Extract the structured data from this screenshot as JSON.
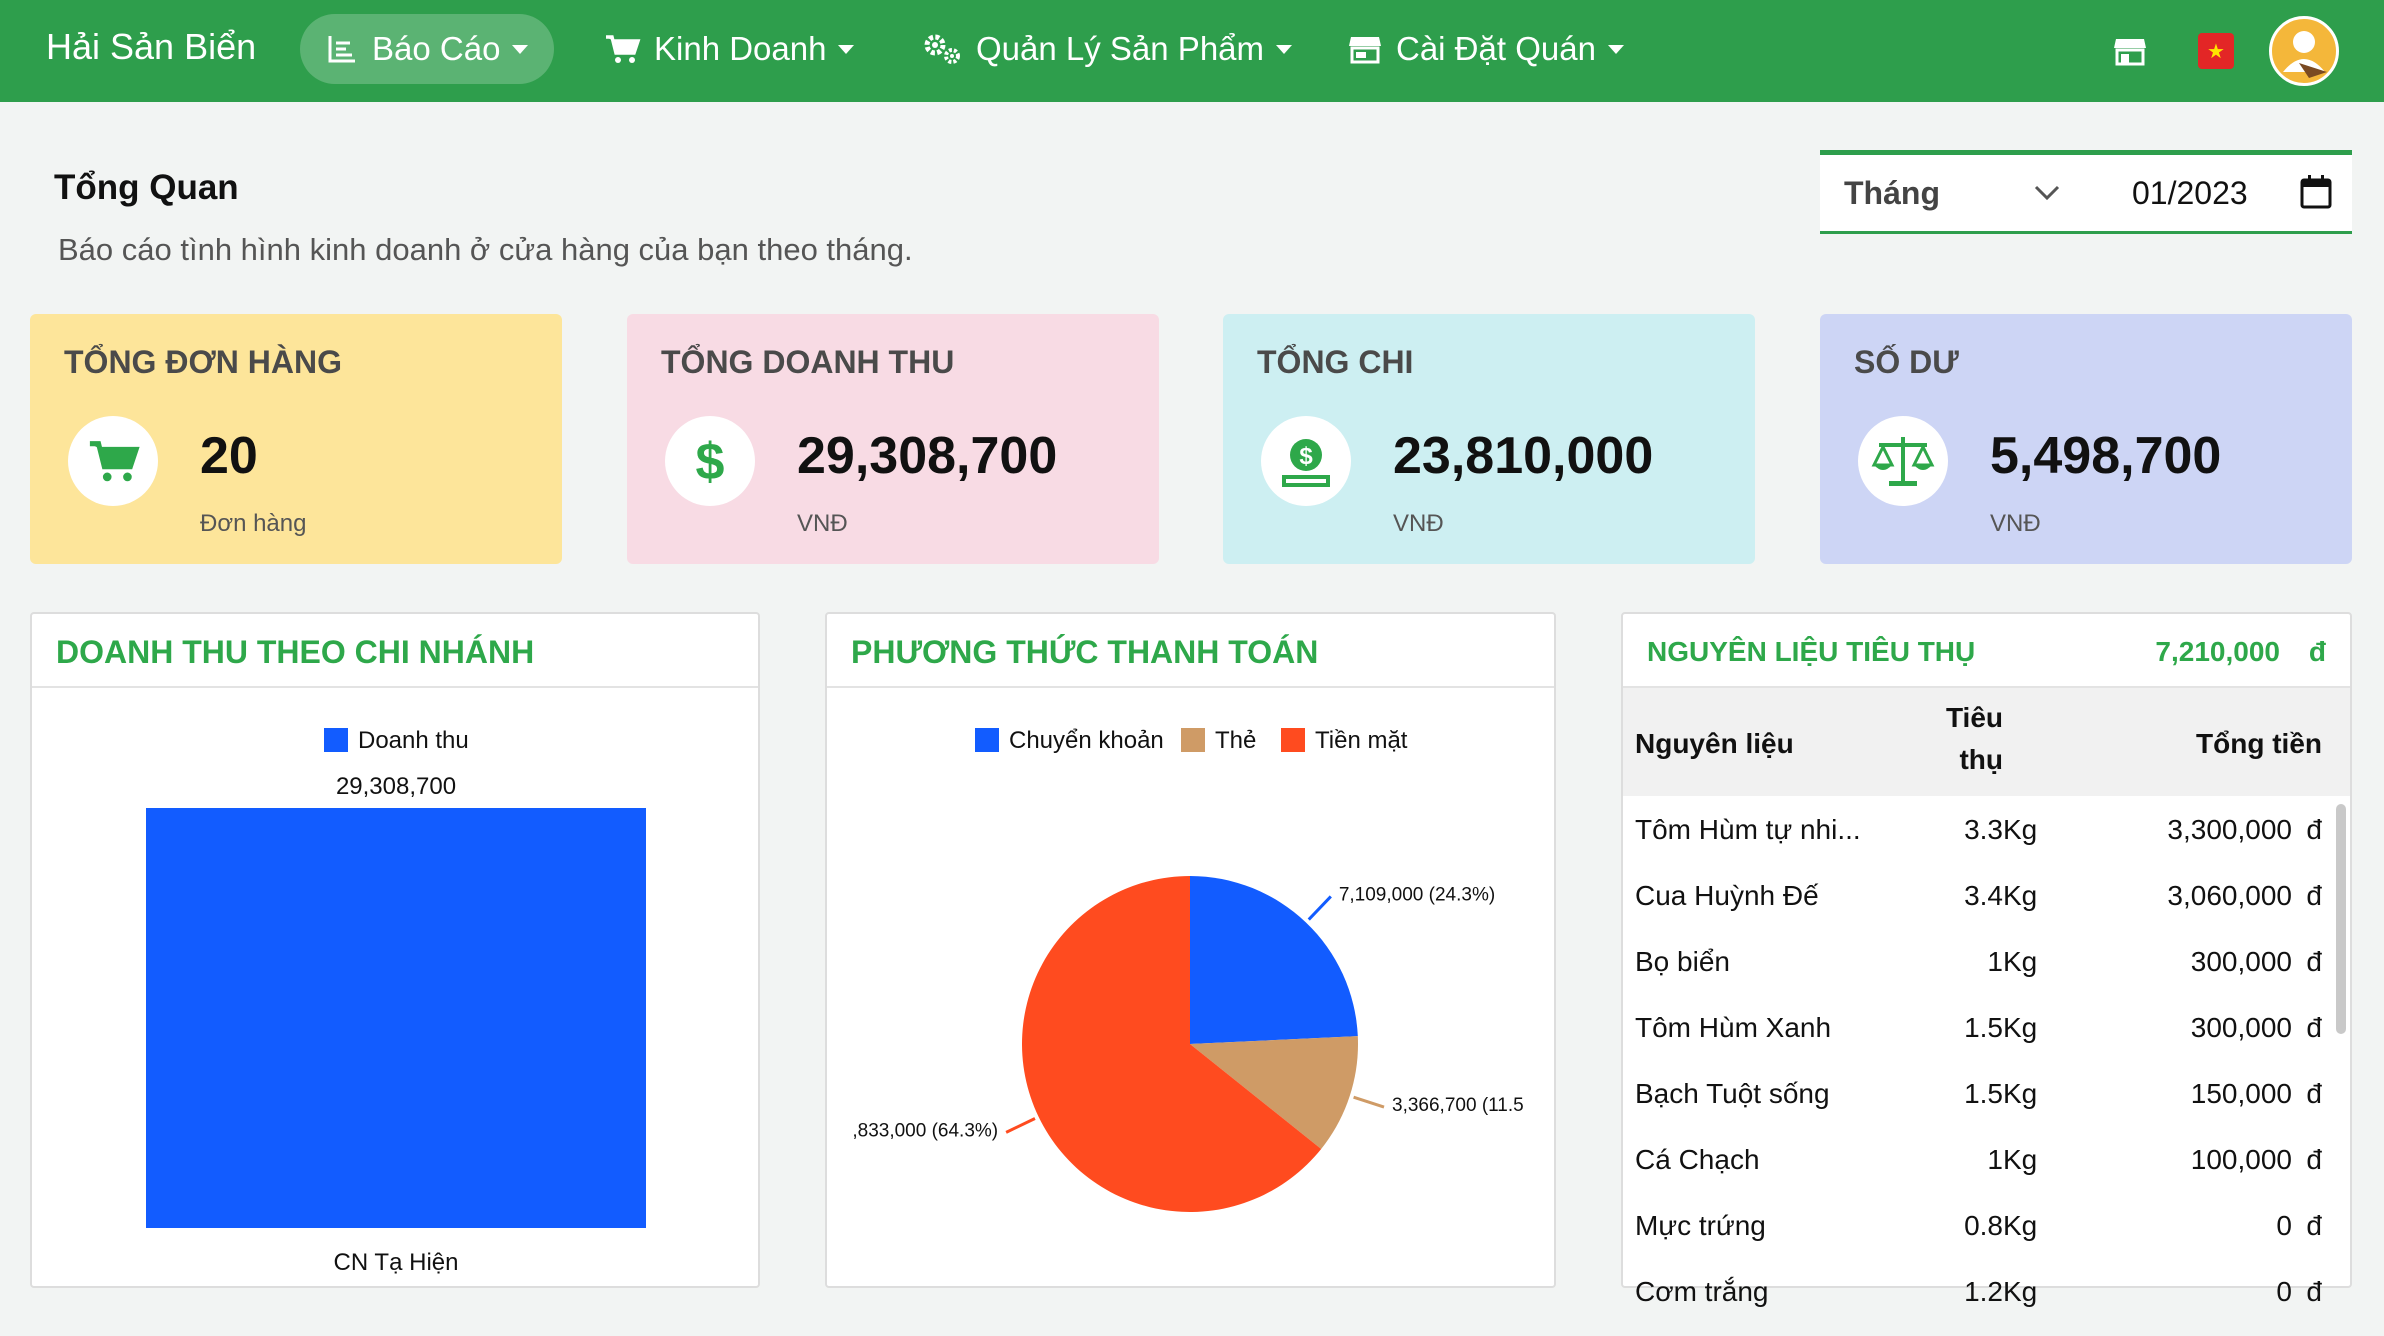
{
  "nav": {
    "brand": "Hải Sản Biển",
    "items": [
      {
        "label": "Báo Cáo",
        "icon": "report-icon"
      },
      {
        "label": "Kinh Doanh",
        "icon": "cart-icon"
      },
      {
        "label": "Quản Lý Sản Phẩm",
        "icon": "gears-icon"
      },
      {
        "label": "Cài Đặt Quán",
        "icon": "store-icon"
      }
    ],
    "flag_symbol": "★"
  },
  "header": {
    "title": "Tổng Quan",
    "subtitle": "Báo cáo tình hình kinh doanh ở cửa hàng của bạn theo tháng."
  },
  "period": {
    "mode": "Tháng",
    "value": "01/2023"
  },
  "stats": [
    {
      "title": "TỔNG ĐƠN HÀNG",
      "value": "20",
      "unit": "Đơn hàng",
      "color": "#fde59a",
      "icon": "cart-icon"
    },
    {
      "title": "TỔNG DOANH THU",
      "value": "29,308,700",
      "unit": "VNĐ",
      "color": "#f8dbe4",
      "icon": "dollar-icon"
    },
    {
      "title": "TỔNG CHI",
      "value": "23,810,000",
      "unit": "VNĐ",
      "color": "#cdeff2",
      "icon": "money-hand-icon"
    },
    {
      "title": "SỐ DƯ",
      "value": "5,498,700",
      "unit": "VNĐ",
      "color": "#cdd5f5",
      "icon": "balance-scale-icon"
    }
  ],
  "branch_revenue": {
    "title": "DOANH THU THEO CHI NHÁNH"
  },
  "payment": {
    "title": "PHƯƠNG THỨC THANH TOÁN"
  },
  "chart_data": [
    {
      "type": "bar",
      "title": "DOANH THU THEO CHI NHÁNH",
      "categories": [
        "CN Tạ Hiện"
      ],
      "series": [
        {
          "name": "Doanh thu",
          "values": [
            29308700
          ],
          "color": "#125cff"
        }
      ],
      "data_labels": [
        "29,308,700"
      ],
      "legend": "top"
    },
    {
      "type": "pie",
      "title": "PHƯƠNG THỨC THANH TOÁN",
      "slices": [
        {
          "name": "Chuyển khoản",
          "value": 7109000,
          "label": "7,109,000 (24.3%)",
          "color": "#125cff"
        },
        {
          "name": "Thẻ",
          "value": 3366700,
          "label": "3,366,700 (11.5",
          "color": "#cf9b66"
        },
        {
          "name": "Tiền mặt",
          "value": 18833000,
          "label": ",833,000 (64.3%)",
          "color": "#ff4b1f"
        }
      ],
      "legend": "top"
    }
  ],
  "ingredients": {
    "title": "NGUYÊN LIỆU TIÊU THỤ",
    "total": "7,210,000",
    "currency": "đ",
    "col_name": "Nguyên liệu",
    "col_qty_1": "Tiêu",
    "col_qty_2": "thụ",
    "col_total": "Tổng tiền",
    "rows": [
      {
        "name": "Tôm Hùm tự nhi...",
        "qty": "3.3",
        "unit": "Kg",
        "total": "3,300,000",
        "cur": "đ"
      },
      {
        "name": "Cua Huỳnh Đế",
        "qty": "3.4",
        "unit": "Kg",
        "total": "3,060,000",
        "cur": "đ"
      },
      {
        "name": "Bọ biển",
        "qty": "1",
        "unit": "Kg",
        "total": "300,000",
        "cur": "đ"
      },
      {
        "name": "Tôm Hùm Xanh",
        "qty": "1.5",
        "unit": "Kg",
        "total": "300,000",
        "cur": "đ"
      },
      {
        "name": "Bạch Tuột sống",
        "qty": "1.5",
        "unit": "Kg",
        "total": "150,000",
        "cur": "đ"
      },
      {
        "name": "Cá Chạch",
        "qty": "1",
        "unit": "Kg",
        "total": "100,000",
        "cur": "đ"
      },
      {
        "name": "Mực trứng",
        "qty": "0.8",
        "unit": "Kg",
        "total": "0",
        "cur": "đ"
      },
      {
        "name": "Cơm trắng",
        "qty": "1.2",
        "unit": "Kg",
        "total": "0",
        "cur": "đ"
      }
    ]
  }
}
